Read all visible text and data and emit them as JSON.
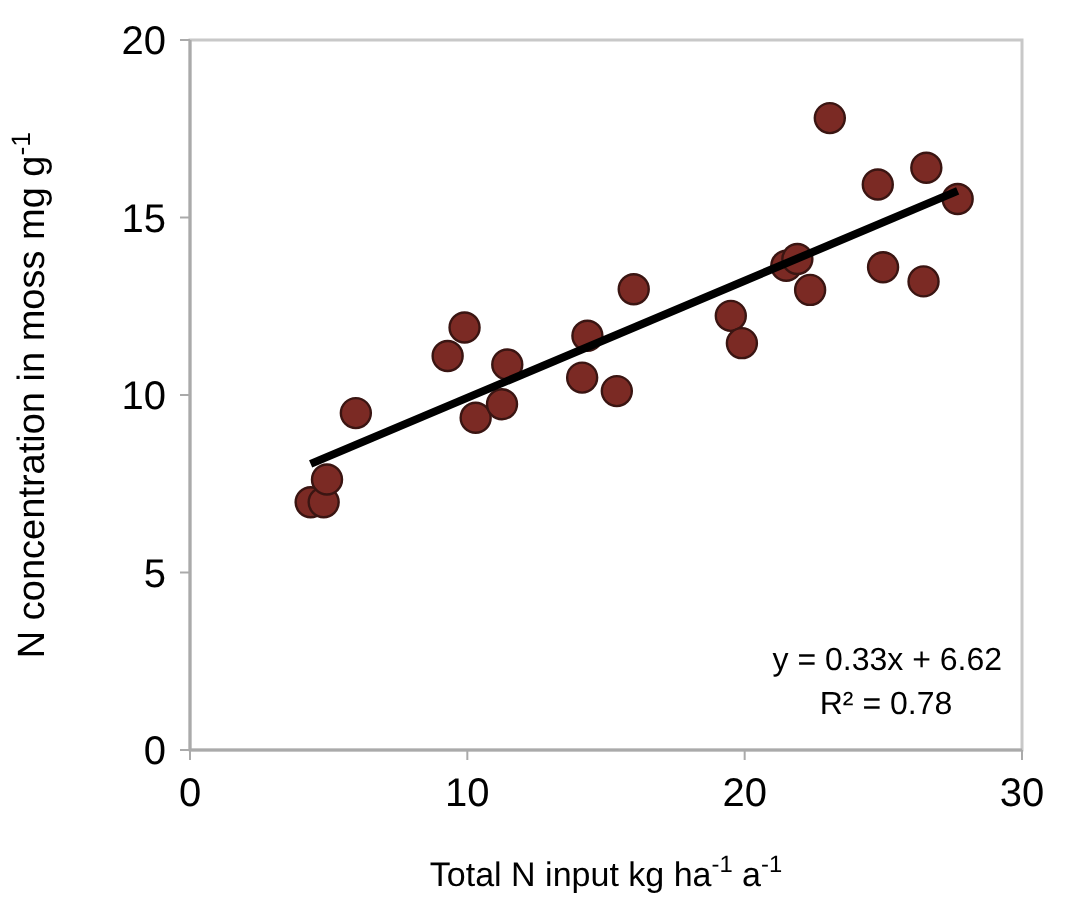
{
  "chart_data": {
    "type": "scatter",
    "xlabel": "Total N input kg ha$^{-1}$ a$^{-1}$",
    "ylabel": "N concentration in moss mg g$^{-1}$",
    "xlim": [
      0,
      30
    ],
    "xticks": [
      0,
      10,
      20,
      30
    ],
    "ylim": [
      0,
      20
    ],
    "yticks": [
      0,
      5,
      10,
      15,
      20
    ],
    "grid": false,
    "annotations": [
      "y = 0.33x + 6.62",
      "R² = 0.78"
    ],
    "series": [
      {
        "marker": "circle",
        "color": "#7b2a24",
        "x": [
          4.35,
          4.82,
          4.94,
          5.98,
          9.29,
          9.9,
          10.3,
          11.25,
          11.44,
          14.14,
          14.33,
          15.39,
          16.0,
          19.5,
          19.9,
          21.5,
          21.9,
          22.36,
          23.07,
          24.8,
          24.99,
          26.45,
          26.55,
          27.68
        ],
        "values": [
          6.98,
          6.98,
          7.62,
          9.49,
          11.1,
          11.9,
          9.36,
          9.74,
          10.86,
          10.49,
          11.67,
          10.11,
          12.98,
          12.23,
          11.46,
          13.64,
          13.83,
          12.96,
          17.8,
          15.93,
          13.6,
          13.2,
          16.4,
          15.52
        ]
      },
      {
        "type": "line",
        "color": "#000000",
        "line_style": "solid",
        "x": [
          4.35,
          27.68
        ],
        "values": [
          8.06,
          15.75
        ]
      }
    ]
  }
}
